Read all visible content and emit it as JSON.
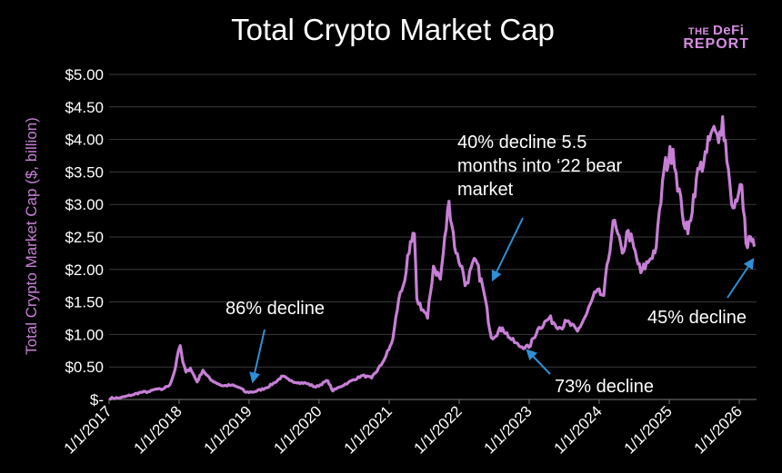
{
  "logo": {
    "line1a": "THE",
    "line1b": "DeFi",
    "line2": "REPORT"
  },
  "colors": {
    "background": "#000000",
    "series": "#c77fd6",
    "arrow": "#2e8fd6",
    "grid": "#3a3a3a",
    "text": "#ffffff"
  },
  "chart_data": {
    "type": "line",
    "title": "Total Crypto Market Cap",
    "ylabel": "Total Crypto Market Cap ($, billion)",
    "xlabel": "",
    "ylim": [
      0,
      5
    ],
    "xlim": [
      "2017-01-01",
      "2026-04-01"
    ],
    "grid": true,
    "y_ticks": [
      "$-",
      "$0.50",
      "$1.00",
      "$1.50",
      "$2.00",
      "$2.50",
      "$3.00",
      "$3.50",
      "$4.00",
      "$4.50",
      "$5.00"
    ],
    "x_ticks": [
      "1/1/2017",
      "1/1/2018",
      "1/1/2019",
      "1/1/2020",
      "1/1/2021",
      "1/1/2022",
      "1/1/2023",
      "1/1/2024",
      "1/1/2025",
      "1/1/2026"
    ],
    "series": [
      {
        "values": [
          [
            "2017-01-01",
            0.018
          ],
          [
            "2017-03-01",
            0.025
          ],
          [
            "2017-05-01",
            0.07
          ],
          [
            "2017-06-15",
            0.11
          ],
          [
            "2017-08-01",
            0.12
          ],
          [
            "2017-09-01",
            0.16
          ],
          [
            "2017-10-01",
            0.15
          ],
          [
            "2017-11-15",
            0.23
          ],
          [
            "2017-12-10",
            0.45
          ],
          [
            "2017-12-20",
            0.62
          ],
          [
            "2018-01-07",
            0.83
          ],
          [
            "2018-01-20",
            0.58
          ],
          [
            "2018-02-06",
            0.42
          ],
          [
            "2018-03-01",
            0.48
          ],
          [
            "2018-04-05",
            0.27
          ],
          [
            "2018-05-05",
            0.45
          ],
          [
            "2018-06-15",
            0.3
          ],
          [
            "2018-08-15",
            0.21
          ],
          [
            "2018-10-01",
            0.22
          ],
          [
            "2018-11-15",
            0.18
          ],
          [
            "2018-12-15",
            0.11
          ],
          [
            "2019-02-01",
            0.12
          ],
          [
            "2019-04-01",
            0.18
          ],
          [
            "2019-05-15",
            0.26
          ],
          [
            "2019-06-26",
            0.36
          ],
          [
            "2019-08-01",
            0.29
          ],
          [
            "2019-09-15",
            0.26
          ],
          [
            "2019-10-25",
            0.25
          ],
          [
            "2019-12-15",
            0.19
          ],
          [
            "2020-02-15",
            0.29
          ],
          [
            "2020-03-13",
            0.13
          ],
          [
            "2020-04-15",
            0.19
          ],
          [
            "2020-06-01",
            0.26
          ],
          [
            "2020-08-15",
            0.37
          ],
          [
            "2020-10-01",
            0.33
          ],
          [
            "2020-11-20",
            0.53
          ],
          [
            "2020-12-31",
            0.77
          ],
          [
            "2021-01-20",
            0.93
          ],
          [
            "2021-02-20",
            1.55
          ],
          [
            "2021-03-15",
            1.75
          ],
          [
            "2021-04-15",
            2.25
          ],
          [
            "2021-05-12",
            2.55
          ],
          [
            "2021-05-25",
            1.55
          ],
          [
            "2021-07-20",
            1.25
          ],
          [
            "2021-08-20",
            2.05
          ],
          [
            "2021-09-25",
            1.85
          ],
          [
            "2021-11-09",
            3.05
          ],
          [
            "2021-12-15",
            2.25
          ],
          [
            "2022-01-15",
            2.05
          ],
          [
            "2022-02-01",
            1.75
          ],
          [
            "2022-03-28",
            2.15
          ],
          [
            "2022-05-10",
            1.65
          ],
          [
            "2022-06-18",
            0.95
          ],
          [
            "2022-08-15",
            1.1
          ],
          [
            "2022-09-30",
            0.92
          ],
          [
            "2022-11-10",
            0.82
          ],
          [
            "2022-12-31",
            0.8
          ],
          [
            "2023-02-15",
            1.08
          ],
          [
            "2023-04-15",
            1.25
          ],
          [
            "2023-06-15",
            1.1
          ],
          [
            "2023-07-15",
            1.2
          ],
          [
            "2023-09-10",
            1.05
          ],
          [
            "2023-10-25",
            1.3
          ],
          [
            "2023-12-15",
            1.65
          ],
          [
            "2024-01-25",
            1.6
          ],
          [
            "2024-03-14",
            2.75
          ],
          [
            "2024-05-01",
            2.25
          ],
          [
            "2024-06-01",
            2.6
          ],
          [
            "2024-08-05",
            1.95
          ],
          [
            "2024-09-20",
            2.15
          ],
          [
            "2024-10-25",
            2.35
          ],
          [
            "2024-12-05",
            3.55
          ],
          [
            "2025-01-20",
            3.85
          ],
          [
            "2025-03-10",
            2.85
          ],
          [
            "2025-04-08",
            2.55
          ],
          [
            "2025-05-22",
            3.4
          ],
          [
            "2025-07-15",
            3.8
          ],
          [
            "2025-08-14",
            4.15
          ],
          [
            "2025-09-15",
            3.95
          ],
          [
            "2025-10-06",
            4.35
          ],
          [
            "2025-11-05",
            3.55
          ],
          [
            "2025-11-22",
            3.0
          ],
          [
            "2025-12-20",
            3.05
          ],
          [
            "2026-01-14",
            3.3
          ],
          [
            "2026-02-05",
            2.4
          ],
          [
            "2026-03-01",
            2.5
          ],
          [
            "2026-03-20",
            2.35
          ]
        ]
      }
    ],
    "annotations": [
      {
        "text_lines": [
          "86% decline"
        ]
      },
      {
        "text_lines": [
          "40% decline 5.5",
          "months into ‘22 bear",
          "market"
        ]
      },
      {
        "text_lines": [
          "73% decline"
        ]
      },
      {
        "text_lines": [
          "45% decline"
        ]
      }
    ]
  }
}
